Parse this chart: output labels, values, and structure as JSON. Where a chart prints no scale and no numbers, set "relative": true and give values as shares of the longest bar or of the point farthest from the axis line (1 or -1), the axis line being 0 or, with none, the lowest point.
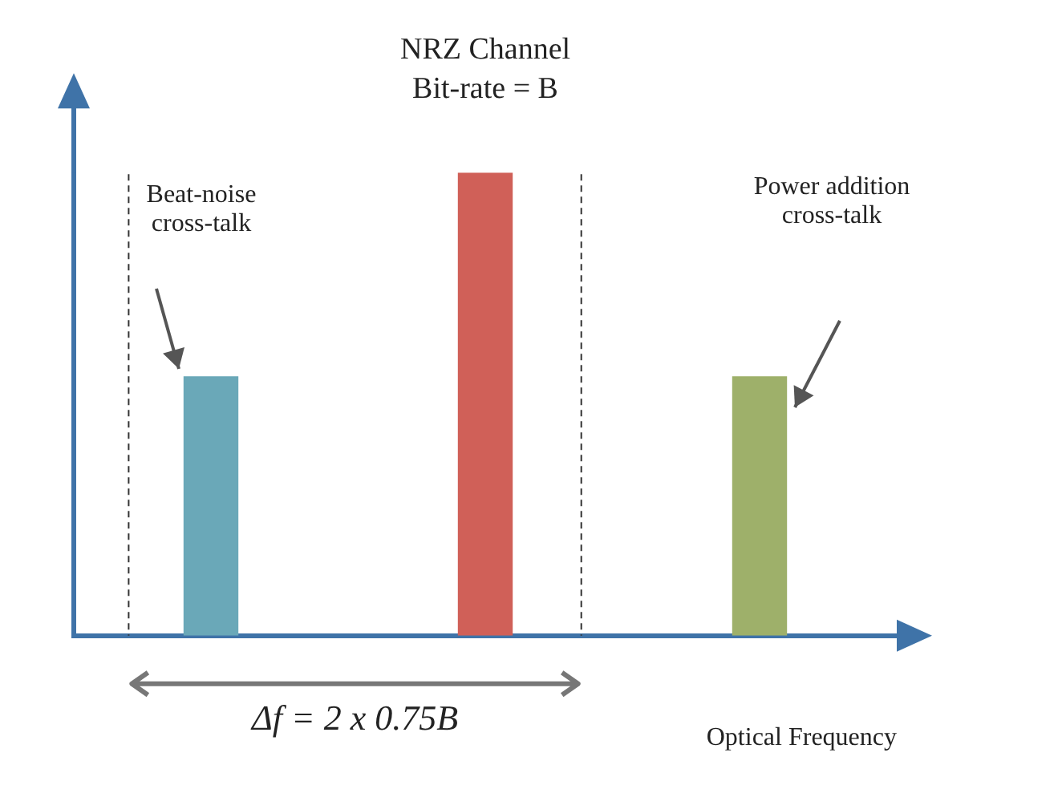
{
  "chart_data": {
    "type": "bar",
    "title": "NRZ Channel",
    "subtitle": "Bit-rate = B",
    "xlabel": "Optical Frequency",
    "categories": [
      null,
      null,
      null
    ],
    "values": [
      0.56,
      1,
      0.56
    ],
    "colors": [
      "#6aa8b8",
      "#d06058",
      "#9eb06a"
    ],
    "relative": true,
    "grid": false,
    "legend": false,
    "annotations": [
      "Beat-noise cross-talk",
      "Power addition cross-talk",
      "Δf = 2 x 0.75B"
    ]
  }
}
